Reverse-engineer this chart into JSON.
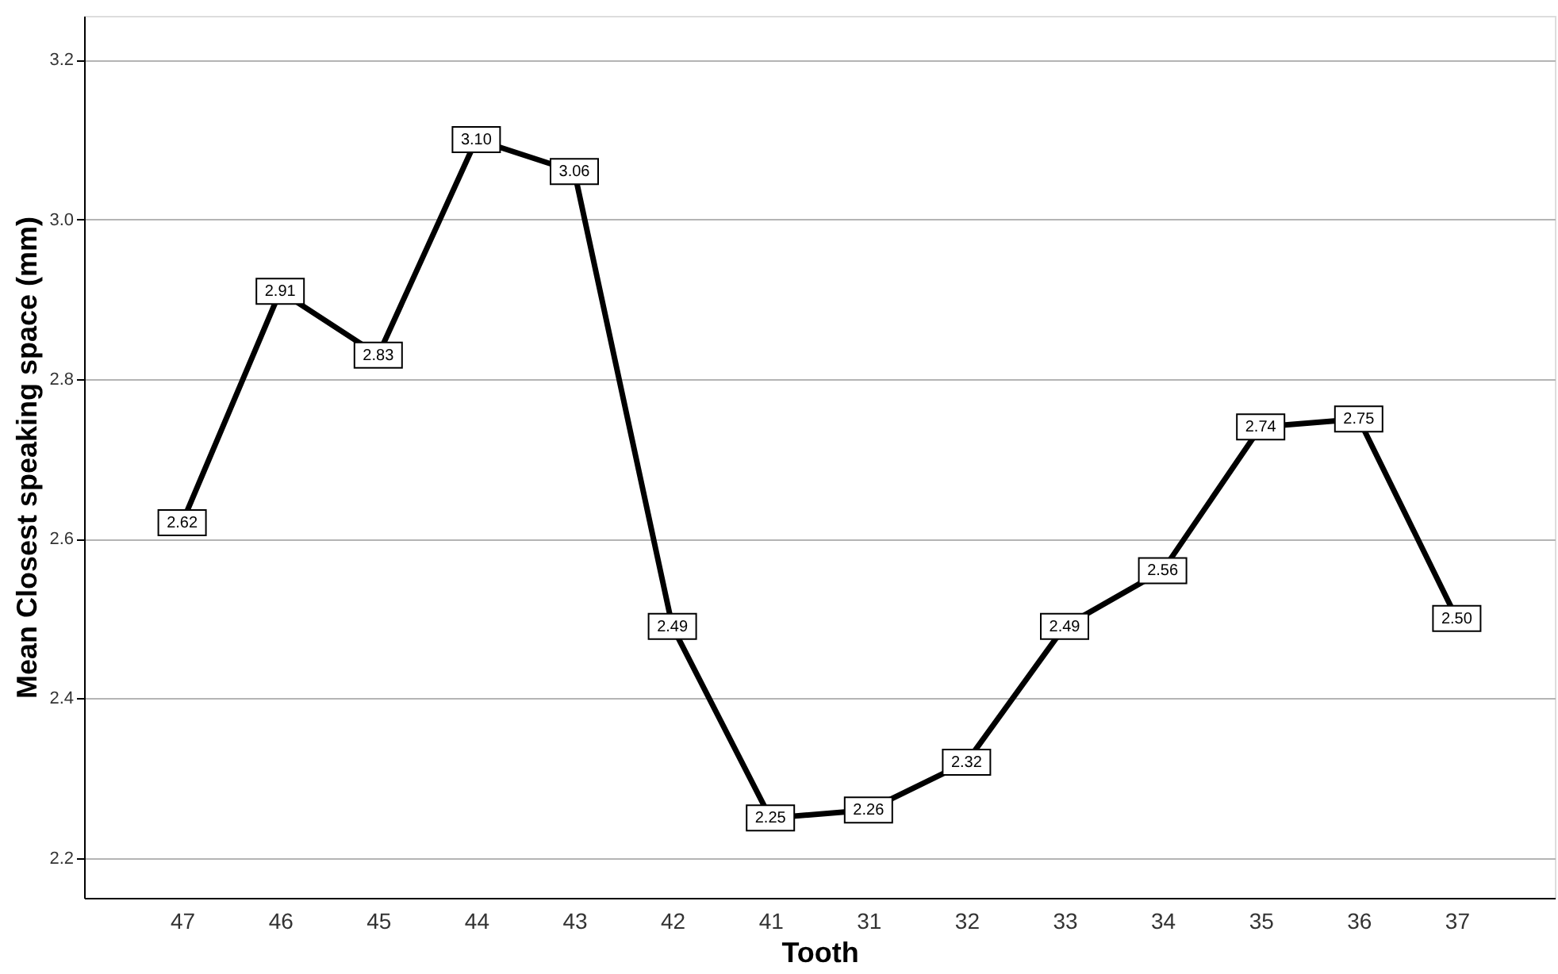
{
  "chart_data": {
    "type": "line",
    "xlabel": "Tooth",
    "ylabel": "Mean Closest speaking space (mm)",
    "categories": [
      "47",
      "46",
      "45",
      "44",
      "43",
      "42",
      "41",
      "31",
      "32",
      "33",
      "34",
      "35",
      "36",
      "37"
    ],
    "series": [
      {
        "color": "#000000",
        "values": [
          2.62,
          2.91,
          2.83,
          3.1,
          3.06,
          2.49,
          2.25,
          2.26,
          2.32,
          2.49,
          2.56,
          2.74,
          2.75,
          2.5
        ],
        "value_labels": [
          "2.62",
          "2.91",
          "2.83",
          "3.10",
          "3.06",
          "2.49",
          "2.25",
          "2.26",
          "2.32",
          "2.49",
          "2.56",
          "2.74",
          "2.75",
          "2.50"
        ]
      }
    ],
    "ylim": [
      2.15,
      3.255
    ],
    "yticks": [
      {
        "value": 2.2,
        "label": "2.2"
      },
      {
        "value": 2.4,
        "label": "2.4"
      },
      {
        "value": 2.6,
        "label": "2.6"
      },
      {
        "value": 2.8,
        "label": "2.8"
      },
      {
        "value": 3.0,
        "label": "3.0"
      },
      {
        "value": 3.2,
        "label": "3.2"
      }
    ],
    "grid": "y",
    "line_style": "solid",
    "marker": "square"
  }
}
